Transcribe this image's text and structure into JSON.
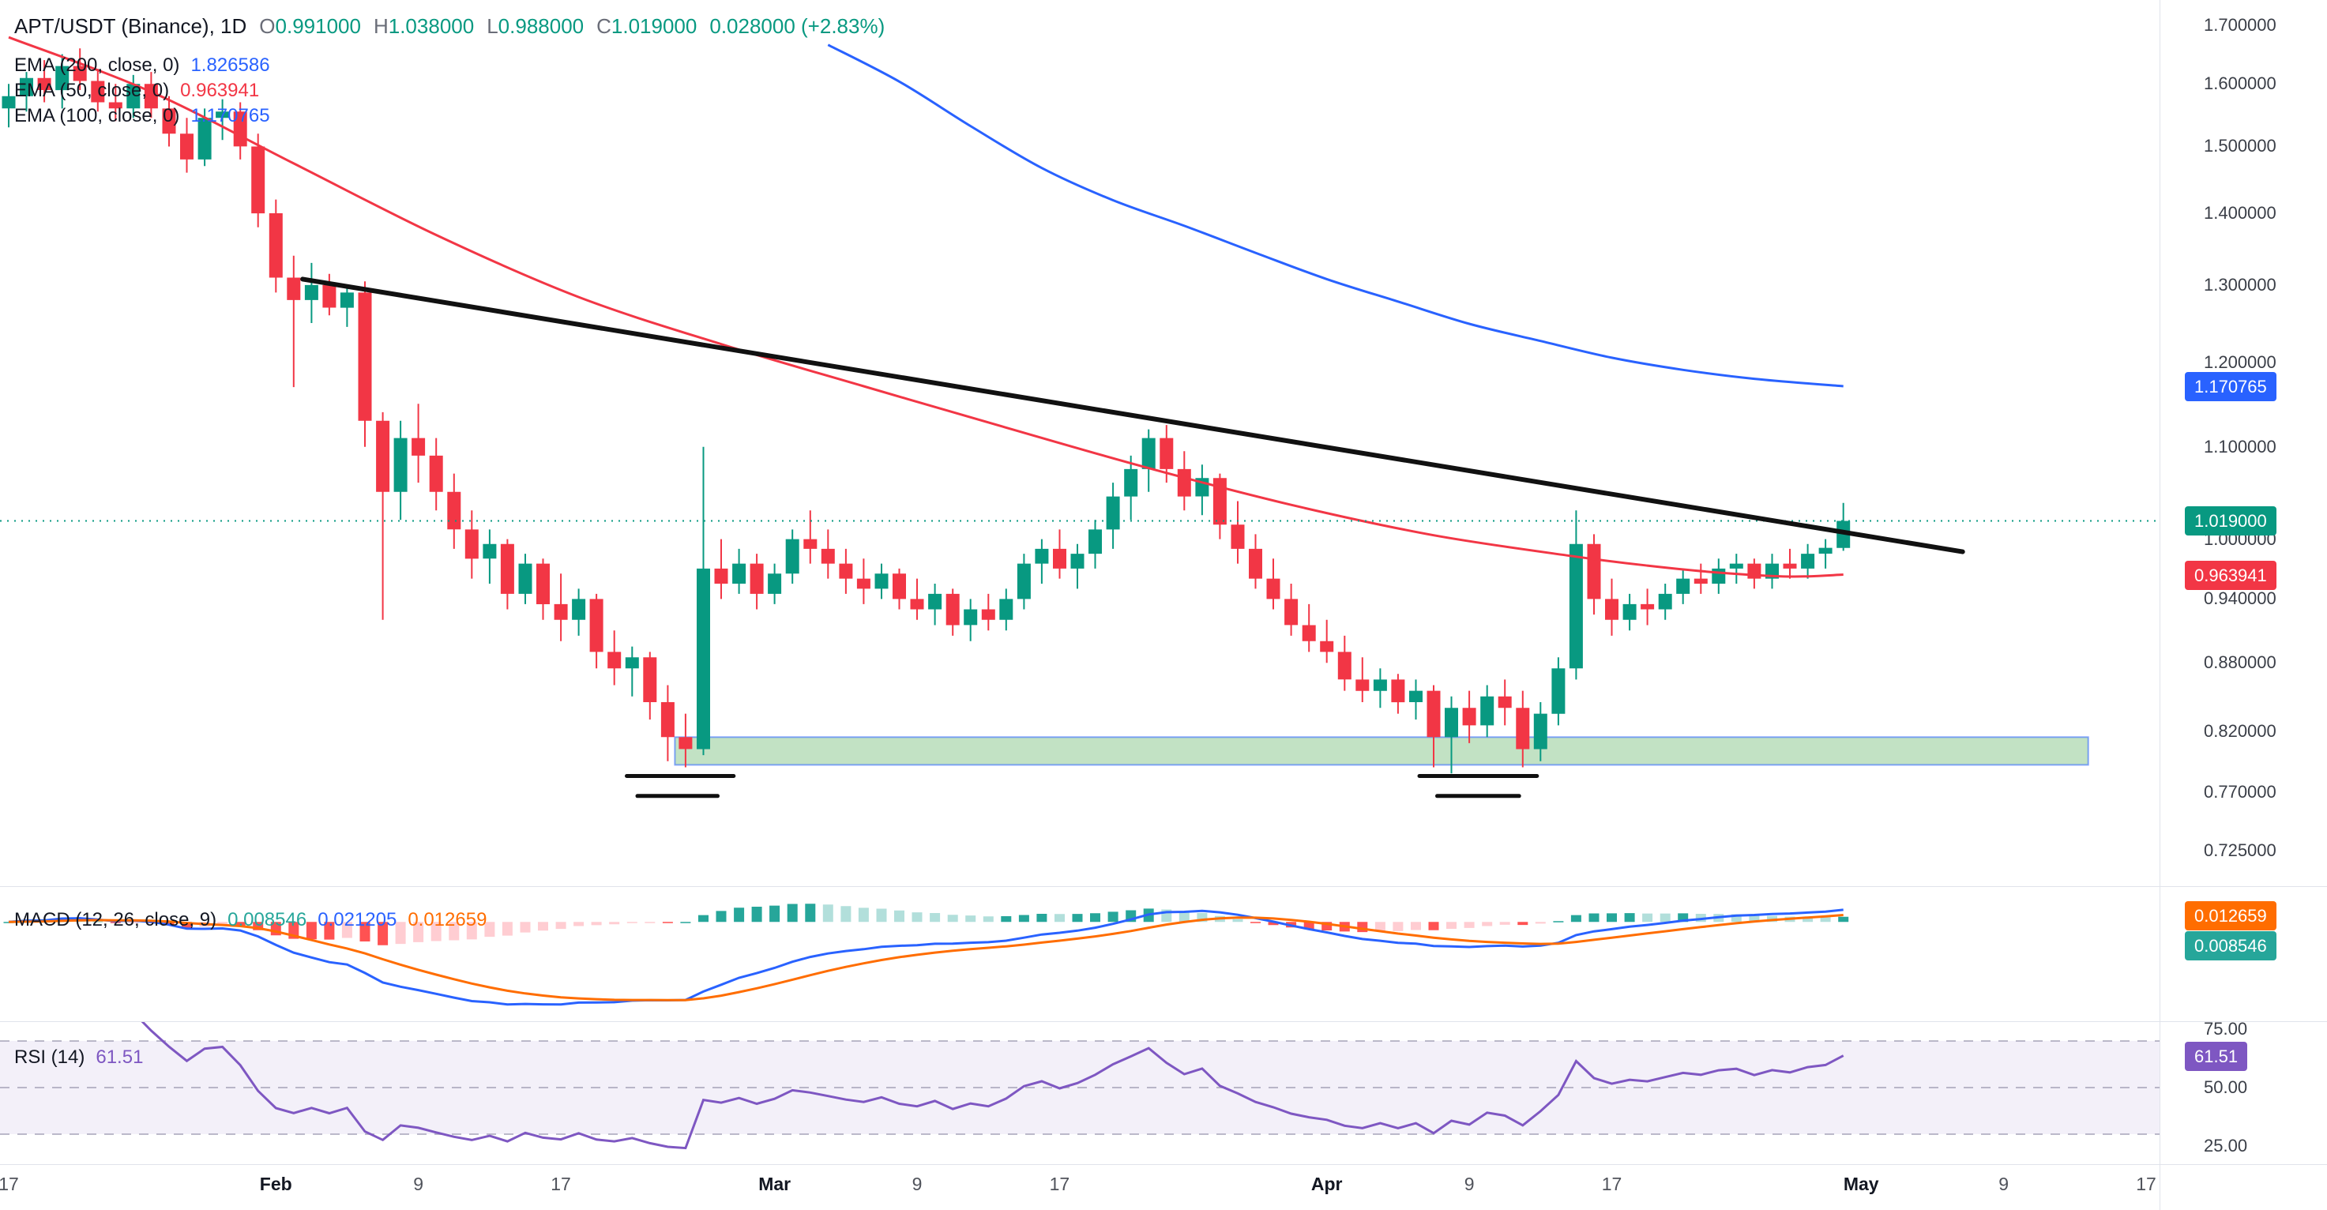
{
  "legend": {
    "title": "APT/USDT (Binance), 1D",
    "o_key": "O",
    "o_val": "0.991000",
    "h_key": "H",
    "h_val": "1.038000",
    "l_key": "L",
    "l_val": "0.988000",
    "c_key": "C",
    "c_val": "1.019000",
    "change": "0.028000 (+2.83%)",
    "ema200_name": "EMA (200, close, 0)",
    "ema200_val": "1.826586",
    "ema50_name": "EMA (50, close, 0)",
    "ema50_val": "0.963941",
    "ema100_name": "EMA (100, close, 0)",
    "ema100_val": "1.170765",
    "macd_name": "MACD (12, 26, close, 9)",
    "macd_hist": "0.008546",
    "macd_line": "0.021205",
    "macd_signal": "0.012659",
    "rsi_name": "RSI (14)",
    "rsi_val": "61.51"
  },
  "axis": {
    "price_labels": [
      {
        "text": "1.700000",
        "price": 1.7
      },
      {
        "text": "1.600000",
        "price": 1.6
      },
      {
        "text": "1.500000",
        "price": 1.5
      },
      {
        "text": "1.400000",
        "price": 1.4
      },
      {
        "text": "1.300000",
        "price": 1.3
      },
      {
        "text": "1.200000",
        "price": 1.2
      },
      {
        "text": "1.100000",
        "price": 1.1
      },
      {
        "text": "1.000000",
        "price": 1.0
      },
      {
        "text": "0.940000",
        "price": 0.94
      },
      {
        "text": "0.880000",
        "price": 0.88
      },
      {
        "text": "0.820000",
        "price": 0.82
      },
      {
        "text": "0.770000",
        "price": 0.77
      },
      {
        "text": "0.725000",
        "price": 0.725
      }
    ],
    "price_badges": [
      {
        "text": "1.170765",
        "price": 1.170765,
        "color": "#2962FF",
        "name": "ema100-price-badge"
      },
      {
        "text": "1.019000",
        "price": 1.019,
        "color": "#089981",
        "name": "last-price-badge"
      },
      {
        "text": "0.963941",
        "price": 0.963941,
        "color": "#F23645",
        "name": "ema50-price-badge"
      }
    ],
    "macd_badges": [
      {
        "text": "0.012659",
        "color": "#FF6D00",
        "name": "macd-signal-badge"
      },
      {
        "text": "0.008546",
        "color": "#26A69A",
        "name": "macd-hist-badge"
      }
    ],
    "rsi_labels": [
      {
        "text": "75.00",
        "value": 75
      },
      {
        "text": "50.00",
        "value": 50
      },
      {
        "text": "25.00",
        "value": 25
      }
    ],
    "rsi_badge": {
      "text": "61.51",
      "color": "#7E57C2"
    },
    "time_labels": [
      {
        "t": "17",
        "d": 0,
        "m": 0
      },
      {
        "t": "Feb",
        "d": 15,
        "m": 1
      },
      {
        "t": "9",
        "d": 23,
        "m": 0
      },
      {
        "t": "17",
        "d": 31,
        "m": 0
      },
      {
        "t": "Mar",
        "d": 43,
        "m": 1
      },
      {
        "t": "9",
        "d": 51,
        "m": 0
      },
      {
        "t": "17",
        "d": 59,
        "m": 0
      },
      {
        "t": "Apr",
        "d": 74,
        "m": 1
      },
      {
        "t": "9",
        "d": 82,
        "m": 0
      },
      {
        "t": "17",
        "d": 90,
        "m": 0
      },
      {
        "t": "May",
        "d": 104,
        "m": 1
      },
      {
        "t": "9",
        "d": 112,
        "m": 0
      },
      {
        "t": "17",
        "d": 120,
        "m": 0
      }
    ]
  },
  "chart_data": {
    "type": "candlestick",
    "title": "APT/USDT (Binance), 1D",
    "price_scale": "log",
    "visible_price_range": [
      0.7,
      1.72
    ],
    "candles": [
      [
        1.56,
        1.6,
        1.53,
        1.58
      ],
      [
        1.58,
        1.62,
        1.555,
        1.61
      ],
      [
        1.61,
        1.64,
        1.57,
        1.59
      ],
      [
        1.59,
        1.65,
        1.56,
        1.63
      ],
      [
        1.63,
        1.66,
        1.59,
        1.605
      ],
      [
        1.605,
        1.625,
        1.555,
        1.57
      ],
      [
        1.57,
        1.6,
        1.54,
        1.56
      ],
      [
        1.56,
        1.615,
        1.545,
        1.6
      ],
      [
        1.6,
        1.62,
        1.545,
        1.56
      ],
      [
        1.56,
        1.58,
        1.5,
        1.52
      ],
      [
        1.52,
        1.545,
        1.46,
        1.48
      ],
      [
        1.48,
        1.56,
        1.47,
        1.545
      ],
      [
        1.545,
        1.575,
        1.51,
        1.555
      ],
      [
        1.555,
        1.57,
        1.48,
        1.5
      ],
      [
        1.5,
        1.52,
        1.38,
        1.4
      ],
      [
        1.4,
        1.42,
        1.29,
        1.31
      ],
      [
        1.31,
        1.34,
        1.17,
        1.28
      ],
      [
        1.28,
        1.33,
        1.25,
        1.3
      ],
      [
        1.3,
        1.315,
        1.26,
        1.27
      ],
      [
        1.27,
        1.3,
        1.245,
        1.29
      ],
      [
        1.29,
        1.305,
        1.1,
        1.13
      ],
      [
        1.13,
        1.14,
        0.92,
        1.05
      ],
      [
        1.05,
        1.13,
        1.02,
        1.11
      ],
      [
        1.11,
        1.15,
        1.06,
        1.09
      ],
      [
        1.09,
        1.11,
        1.03,
        1.05
      ],
      [
        1.05,
        1.07,
        0.99,
        1.01
      ],
      [
        1.01,
        1.03,
        0.96,
        0.98
      ],
      [
        0.98,
        1.01,
        0.955,
        0.995
      ],
      [
        0.995,
        1.0,
        0.93,
        0.945
      ],
      [
        0.945,
        0.985,
        0.935,
        0.975
      ],
      [
        0.975,
        0.98,
        0.92,
        0.935
      ],
      [
        0.935,
        0.965,
        0.9,
        0.92
      ],
      [
        0.92,
        0.95,
        0.905,
        0.94
      ],
      [
        0.94,
        0.945,
        0.875,
        0.89
      ],
      [
        0.89,
        0.91,
        0.86,
        0.875
      ],
      [
        0.875,
        0.895,
        0.85,
        0.885
      ],
      [
        0.885,
        0.89,
        0.83,
        0.845
      ],
      [
        0.845,
        0.86,
        0.795,
        0.815
      ],
      [
        0.815,
        0.835,
        0.79,
        0.805
      ],
      [
        0.805,
        1.1,
        0.8,
        0.97
      ],
      [
        0.97,
        1.0,
        0.94,
        0.955
      ],
      [
        0.955,
        0.99,
        0.945,
        0.975
      ],
      [
        0.975,
        0.985,
        0.93,
        0.945
      ],
      [
        0.945,
        0.975,
        0.935,
        0.965
      ],
      [
        0.965,
        1.01,
        0.955,
        1.0
      ],
      [
        1.0,
        1.03,
        0.975,
        0.99
      ],
      [
        0.99,
        1.01,
        0.96,
        0.975
      ],
      [
        0.975,
        0.99,
        0.945,
        0.96
      ],
      [
        0.96,
        0.98,
        0.935,
        0.95
      ],
      [
        0.95,
        0.975,
        0.94,
        0.965
      ],
      [
        0.965,
        0.97,
        0.93,
        0.94
      ],
      [
        0.94,
        0.96,
        0.92,
        0.93
      ],
      [
        0.93,
        0.955,
        0.915,
        0.945
      ],
      [
        0.945,
        0.95,
        0.905,
        0.915
      ],
      [
        0.915,
        0.94,
        0.9,
        0.93
      ],
      [
        0.93,
        0.945,
        0.91,
        0.92
      ],
      [
        0.92,
        0.95,
        0.91,
        0.94
      ],
      [
        0.94,
        0.985,
        0.93,
        0.975
      ],
      [
        0.975,
        1.0,
        0.955,
        0.99
      ],
      [
        0.99,
        1.01,
        0.96,
        0.97
      ],
      [
        0.97,
        0.995,
        0.95,
        0.985
      ],
      [
        0.985,
        1.02,
        0.97,
        1.01
      ],
      [
        1.01,
        1.06,
        0.99,
        1.045
      ],
      [
        1.045,
        1.09,
        1.02,
        1.075
      ],
      [
        1.075,
        1.12,
        1.05,
        1.11
      ],
      [
        1.11,
        1.125,
        1.06,
        1.075
      ],
      [
        1.075,
        1.095,
        1.03,
        1.045
      ],
      [
        1.045,
        1.08,
        1.025,
        1.065
      ],
      [
        1.065,
        1.07,
        1.0,
        1.015
      ],
      [
        1.015,
        1.04,
        0.975,
        0.99
      ],
      [
        0.99,
        1.005,
        0.95,
        0.96
      ],
      [
        0.96,
        0.98,
        0.93,
        0.94
      ],
      [
        0.94,
        0.955,
        0.905,
        0.915
      ],
      [
        0.915,
        0.935,
        0.89,
        0.9
      ],
      [
        0.9,
        0.92,
        0.88,
        0.89
      ],
      [
        0.89,
        0.905,
        0.855,
        0.865
      ],
      [
        0.865,
        0.885,
        0.845,
        0.855
      ],
      [
        0.855,
        0.875,
        0.84,
        0.865
      ],
      [
        0.865,
        0.87,
        0.835,
        0.845
      ],
      [
        0.845,
        0.865,
        0.83,
        0.855
      ],
      [
        0.855,
        0.86,
        0.79,
        0.815
      ],
      [
        0.815,
        0.85,
        0.785,
        0.84
      ],
      [
        0.84,
        0.855,
        0.81,
        0.825
      ],
      [
        0.825,
        0.86,
        0.815,
        0.85
      ],
      [
        0.85,
        0.865,
        0.825,
        0.84
      ],
      [
        0.84,
        0.855,
        0.79,
        0.805
      ],
      [
        0.805,
        0.845,
        0.795,
        0.835
      ],
      [
        0.835,
        0.885,
        0.825,
        0.875
      ],
      [
        0.875,
        1.03,
        0.865,
        0.995
      ],
      [
        0.995,
        1.005,
        0.925,
        0.94
      ],
      [
        0.94,
        0.96,
        0.905,
        0.92
      ],
      [
        0.92,
        0.945,
        0.91,
        0.935
      ],
      [
        0.935,
        0.95,
        0.915,
        0.93
      ],
      [
        0.93,
        0.955,
        0.92,
        0.945
      ],
      [
        0.945,
        0.97,
        0.935,
        0.96
      ],
      [
        0.96,
        0.975,
        0.945,
        0.955
      ],
      [
        0.955,
        0.98,
        0.945,
        0.97
      ],
      [
        0.97,
        0.985,
        0.955,
        0.975
      ],
      [
        0.975,
        0.98,
        0.95,
        0.96
      ],
      [
        0.96,
        0.985,
        0.95,
        0.975
      ],
      [
        0.975,
        0.99,
        0.96,
        0.97
      ],
      [
        0.97,
        0.995,
        0.96,
        0.985
      ],
      [
        0.985,
        1.0,
        0.97,
        0.991
      ],
      [
        0.991,
        1.038,
        0.988,
        1.019
      ]
    ],
    "overlays": {
      "ema50_points": [
        [
          0,
          1.679
        ],
        [
          8,
          1.587
        ],
        [
          16,
          1.474
        ],
        [
          24,
          1.369
        ],
        [
          32,
          1.284
        ],
        [
          40,
          1.223
        ],
        [
          48,
          1.171
        ],
        [
          56,
          1.122
        ],
        [
          64,
          1.076
        ],
        [
          72,
          1.036
        ],
        [
          80,
          1.004
        ],
        [
          88,
          0.982
        ],
        [
          92,
          0.973
        ],
        [
          96,
          0.966
        ],
        [
          100,
          0.962
        ],
        [
          103,
          0.964
        ]
      ],
      "ema100_points": [
        [
          46,
          1.666
        ],
        [
          50,
          1.604
        ],
        [
          54,
          1.532
        ],
        [
          58,
          1.467
        ],
        [
          62,
          1.419
        ],
        [
          66,
          1.382
        ],
        [
          70,
          1.344
        ],
        [
          74,
          1.308
        ],
        [
          78,
          1.278
        ],
        [
          82,
          1.249
        ],
        [
          86,
          1.227
        ],
        [
          90,
          1.206
        ],
        [
          94,
          1.191
        ],
        [
          98,
          1.18
        ],
        [
          103,
          1.171
        ]
      ],
      "trendline": {
        "from": {
          "day": 16.5,
          "price": 1.308
        },
        "to": {
          "day": 109.7,
          "price": 0.987
        }
      },
      "support_zone": {
        "day_from": 37.4,
        "day_to": 116.75,
        "price_top": 0.815,
        "price_bottom": 0.792
      },
      "equal_low_marks": [
        {
          "day_from": 34.7,
          "day_to": 40.7,
          "price": 0.783
        },
        {
          "day_from": 35.3,
          "day_to": 39.8,
          "price": 0.767
        },
        {
          "day_from": 79.2,
          "day_to": 85.8,
          "price": 0.783
        },
        {
          "day_from": 80.2,
          "day_to": 84.8,
          "price": 0.767
        }
      ],
      "last_price_line": 1.019
    },
    "indicators": {
      "macd": {
        "fast": 12,
        "slow": 26,
        "signal": 9,
        "current": {
          "hist": 0.008546,
          "macd": 0.021205,
          "signal": 0.012659
        }
      },
      "rsi": {
        "length": 14,
        "current": 61.51,
        "levels": [
          70,
          50,
          30
        ]
      }
    }
  },
  "colors": {
    "up": "#089981",
    "down": "#F23645",
    "ema50": "#F23645",
    "ema100": "#2962FF",
    "macd_line": "#2962FF",
    "macd_signal": "#FF6D00",
    "hist_up": "#26A69A",
    "hist_up_fade": "#B2DFDB",
    "hist_dn": "#FF5252",
    "hist_dn_fade": "#FFCDD2",
    "rsi": "#7E57C2",
    "rsi_band_fill": "rgba(126,87,194,0.09)",
    "rsi_level_line": "rgba(135,133,160,0.55)",
    "trendline": "#111111",
    "support_fill": "rgba(120,190,125,0.45)",
    "support_stroke": "rgba(41,98,255,0.55)"
  }
}
